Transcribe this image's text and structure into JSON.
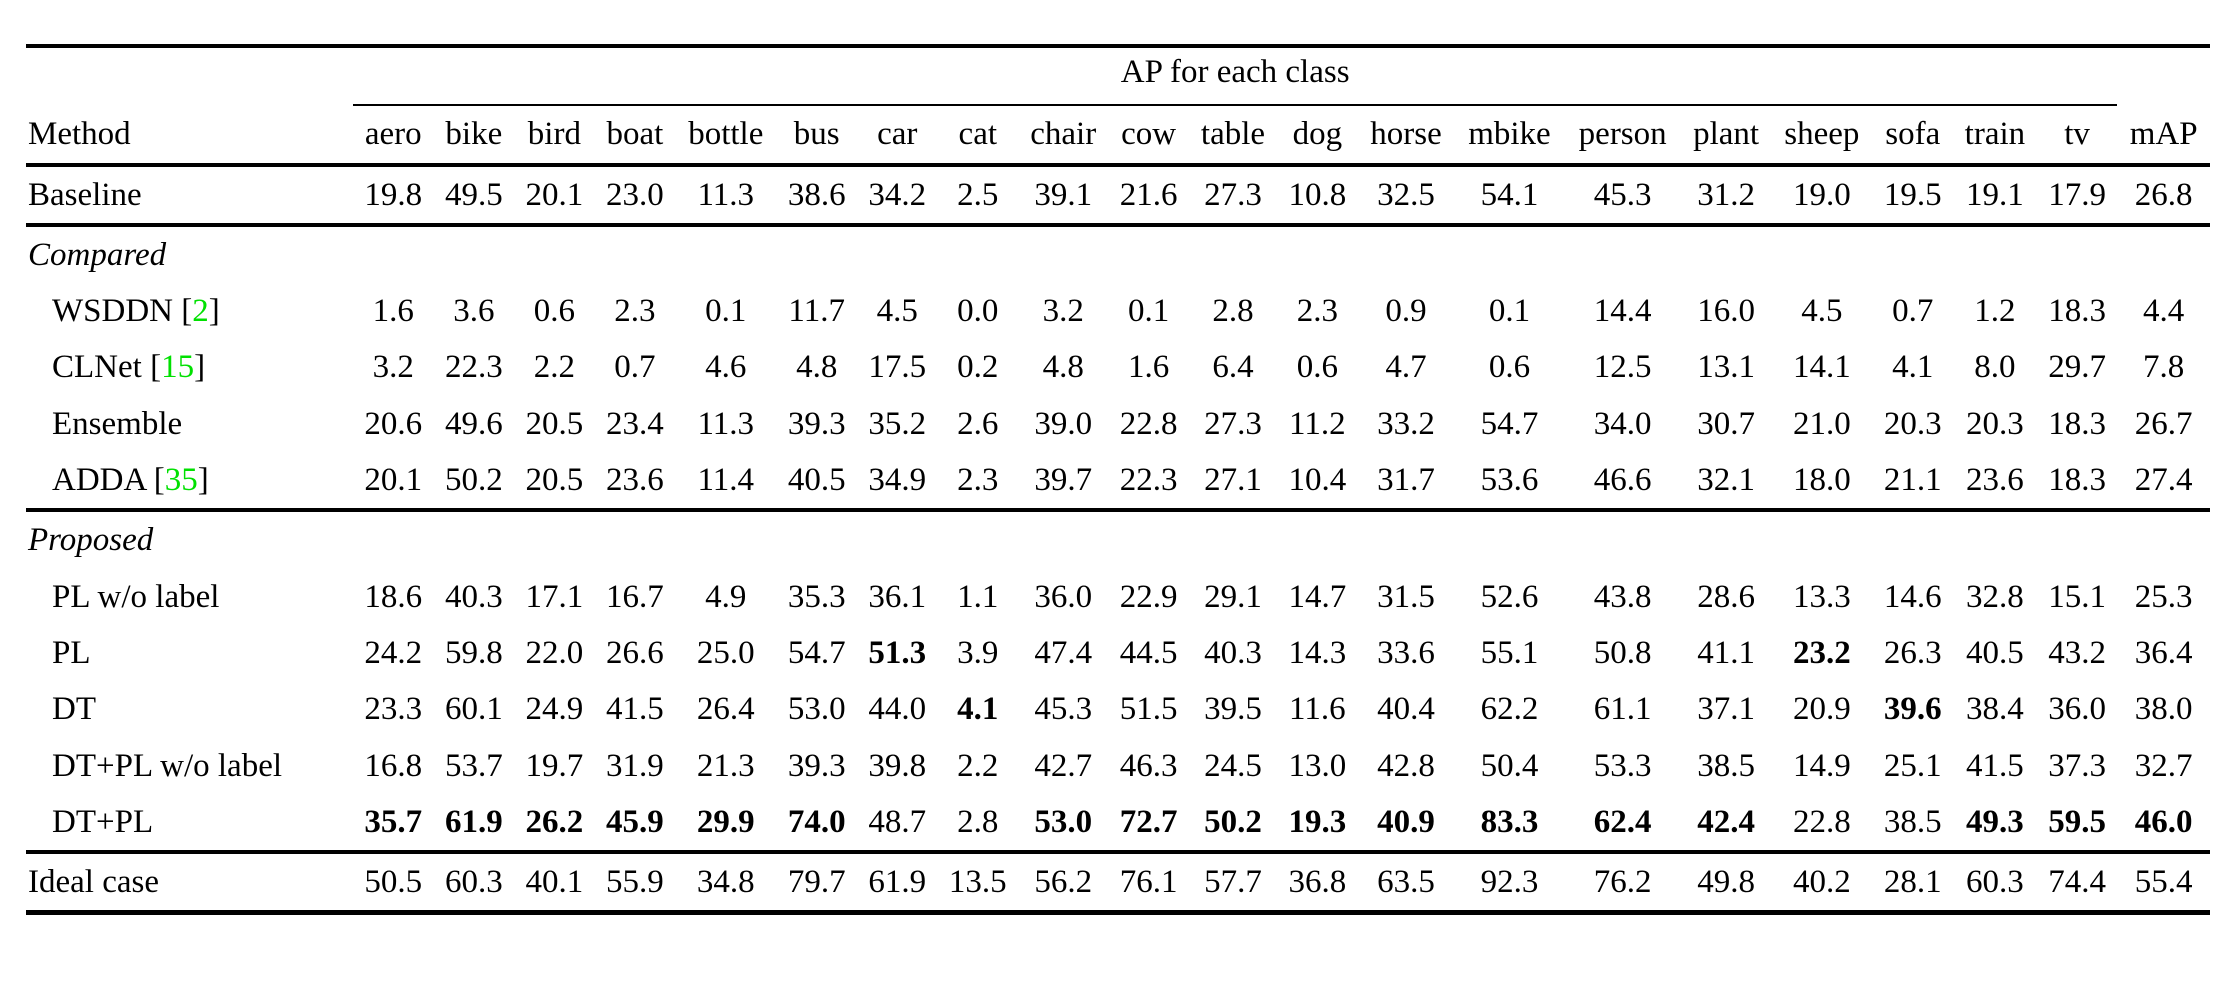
{
  "table": {
    "group_header": "AP for each class",
    "method_header": "Method",
    "class_columns": [
      "aero",
      "bike",
      "bird",
      "boat",
      "bottle",
      "bus",
      "car",
      "cat",
      "chair",
      "cow",
      "table",
      "dog",
      "horse",
      "mbike",
      "person",
      "plant",
      "sheep",
      "sofa",
      "train",
      "tv"
    ],
    "map_column": "mAP",
    "citation_color": "#00E000",
    "text_color": "#000000",
    "sections": [
      {
        "label": null,
        "rows": [
          {
            "method": "Baseline",
            "values": [
              "19.8",
              "49.5",
              "20.1",
              "23.0",
              "11.3",
              "38.6",
              "34.2",
              "2.5",
              "39.1",
              "21.6",
              "27.3",
              "10.8",
              "32.5",
              "54.1",
              "45.3",
              "31.2",
              "19.0",
              "19.5",
              "19.1",
              "17.9",
              "26.8"
            ],
            "bold": []
          }
        ]
      },
      {
        "label": "Compared",
        "rows": [
          {
            "method": "WSDDN",
            "cite": "2",
            "values": [
              "1.6",
              "3.6",
              "0.6",
              "2.3",
              "0.1",
              "11.7",
              "4.5",
              "0.0",
              "3.2",
              "0.1",
              "2.8",
              "2.3",
              "0.9",
              "0.1",
              "14.4",
              "16.0",
              "4.5",
              "0.7",
              "1.2",
              "18.3",
              "4.4"
            ],
            "bold": []
          },
          {
            "method": "CLNet",
            "cite": "15",
            "values": [
              "3.2",
              "22.3",
              "2.2",
              "0.7",
              "4.6",
              "4.8",
              "17.5",
              "0.2",
              "4.8",
              "1.6",
              "6.4",
              "0.6",
              "4.7",
              "0.6",
              "12.5",
              "13.1",
              "14.1",
              "4.1",
              "8.0",
              "29.7",
              "7.8"
            ],
            "bold": []
          },
          {
            "method": "Ensemble",
            "values": [
              "20.6",
              "49.6",
              "20.5",
              "23.4",
              "11.3",
              "39.3",
              "35.2",
              "2.6",
              "39.0",
              "22.8",
              "27.3",
              "11.2",
              "33.2",
              "54.7",
              "34.0",
              "30.7",
              "21.0",
              "20.3",
              "20.3",
              "18.3",
              "26.7"
            ],
            "bold": []
          },
          {
            "method": "ADDA",
            "cite": "35",
            "values": [
              "20.1",
              "50.2",
              "20.5",
              "23.6",
              "11.4",
              "40.5",
              "34.9",
              "2.3",
              "39.7",
              "22.3",
              "27.1",
              "10.4",
              "31.7",
              "53.6",
              "46.6",
              "32.1",
              "18.0",
              "21.1",
              "23.6",
              "18.3",
              "27.4"
            ],
            "bold": []
          }
        ]
      },
      {
        "label": "Proposed",
        "rows": [
          {
            "method": "PL w/o label",
            "values": [
              "18.6",
              "40.3",
              "17.1",
              "16.7",
              "4.9",
              "35.3",
              "36.1",
              "1.1",
              "36.0",
              "22.9",
              "29.1",
              "14.7",
              "31.5",
              "52.6",
              "43.8",
              "28.6",
              "13.3",
              "14.6",
              "32.8",
              "15.1",
              "25.3"
            ],
            "bold": []
          },
          {
            "method": "PL",
            "values": [
              "24.2",
              "59.8",
              "22.0",
              "26.6",
              "25.0",
              "54.7",
              "51.3",
              "3.9",
              "47.4",
              "44.5",
              "40.3",
              "14.3",
              "33.6",
              "55.1",
              "50.8",
              "41.1",
              "23.2",
              "26.3",
              "40.5",
              "43.2",
              "36.4"
            ],
            "bold": [
              6,
              16
            ]
          },
          {
            "method": "DT",
            "values": [
              "23.3",
              "60.1",
              "24.9",
              "41.5",
              "26.4",
              "53.0",
              "44.0",
              "4.1",
              "45.3",
              "51.5",
              "39.5",
              "11.6",
              "40.4",
              "62.2",
              "61.1",
              "37.1",
              "20.9",
              "39.6",
              "38.4",
              "36.0",
              "38.0"
            ],
            "bold": [
              7,
              17
            ]
          },
          {
            "method": "DT+PL w/o label",
            "values": [
              "16.8",
              "53.7",
              "19.7",
              "31.9",
              "21.3",
              "39.3",
              "39.8",
              "2.2",
              "42.7",
              "46.3",
              "24.5",
              "13.0",
              "42.8",
              "50.4",
              "53.3",
              "38.5",
              "14.9",
              "25.1",
              "41.5",
              "37.3",
              "32.7"
            ],
            "bold": []
          },
          {
            "method": "DT+PL",
            "values": [
              "35.7",
              "61.9",
              "26.2",
              "45.9",
              "29.9",
              "74.0",
              "48.7",
              "2.8",
              "53.0",
              "72.7",
              "50.2",
              "19.3",
              "40.9",
              "83.3",
              "62.4",
              "42.4",
              "22.8",
              "38.5",
              "49.3",
              "59.5",
              "46.0"
            ],
            "bold": [
              0,
              1,
              2,
              3,
              4,
              5,
              8,
              9,
              10,
              11,
              12,
              13,
              14,
              15,
              18,
              19,
              20
            ]
          }
        ]
      },
      {
        "label": null,
        "rows": [
          {
            "method": "Ideal case",
            "values": [
              "50.5",
              "60.3",
              "40.1",
              "55.9",
              "34.8",
              "79.7",
              "61.9",
              "13.5",
              "56.2",
              "76.1",
              "57.7",
              "36.8",
              "63.5",
              "92.3",
              "76.2",
              "49.8",
              "40.2",
              "28.1",
              "60.3",
              "74.4",
              "55.4"
            ],
            "bold": []
          }
        ]
      }
    ]
  }
}
